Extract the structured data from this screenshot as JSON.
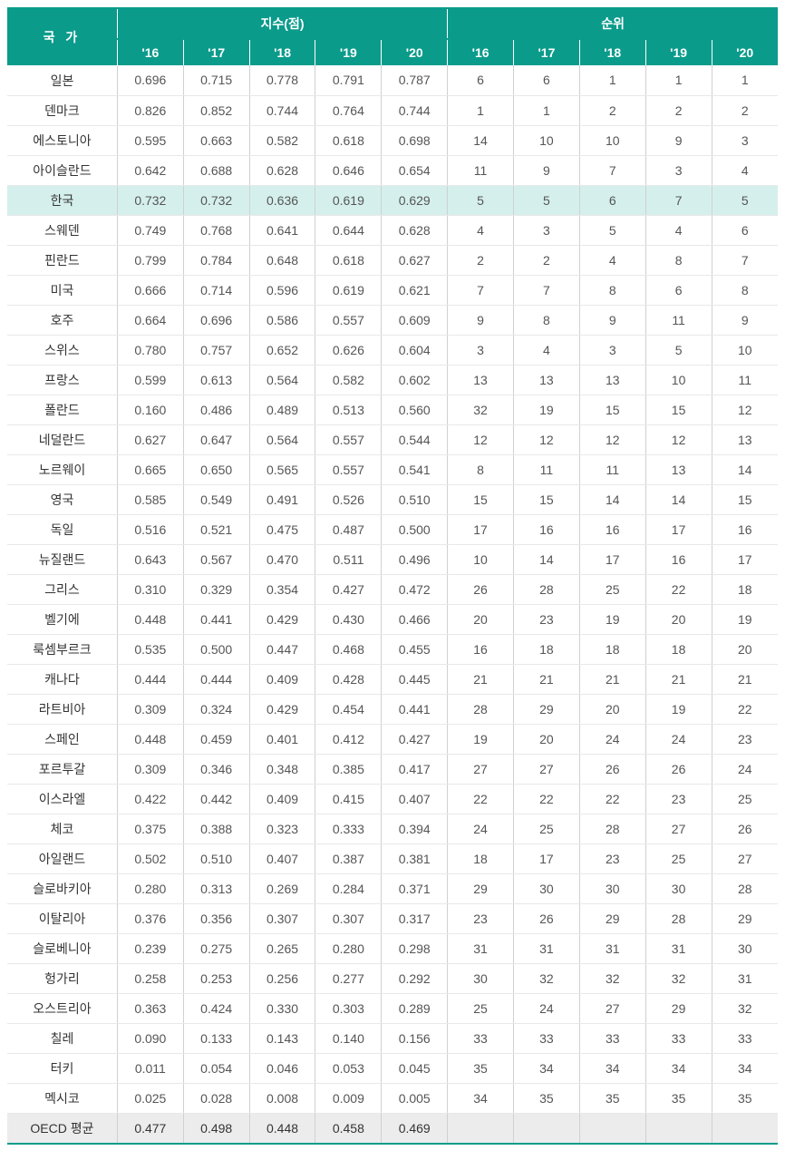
{
  "table": {
    "header": {
      "country_label": "국 가",
      "index_group_label": "지수(점)",
      "rank_group_label": "순위",
      "years": [
        "'16",
        "'17",
        "'18",
        "'19",
        "'20"
      ]
    },
    "colors": {
      "header_bg": "#0a9b8b",
      "header_fg": "#ffffff",
      "highlight_bg": "#d5f0ec",
      "footer_bg": "#ececec",
      "border": "#d0d0d0"
    },
    "rows": [
      {
        "country": "일본",
        "idx": [
          "0.696",
          "0.715",
          "0.778",
          "0.791",
          "0.787"
        ],
        "rank": [
          "6",
          "6",
          "1",
          "1",
          "1"
        ]
      },
      {
        "country": "덴마크",
        "idx": [
          "0.826",
          "0.852",
          "0.744",
          "0.764",
          "0.744"
        ],
        "rank": [
          "1",
          "1",
          "2",
          "2",
          "2"
        ]
      },
      {
        "country": "에스토니아",
        "idx": [
          "0.595",
          "0.663",
          "0.582",
          "0.618",
          "0.698"
        ],
        "rank": [
          "14",
          "10",
          "10",
          "9",
          "3"
        ]
      },
      {
        "country": "아이슬란드",
        "idx": [
          "0.642",
          "0.688",
          "0.628",
          "0.646",
          "0.654"
        ],
        "rank": [
          "11",
          "9",
          "7",
          "3",
          "4"
        ]
      },
      {
        "country": "한국",
        "idx": [
          "0.732",
          "0.732",
          "0.636",
          "0.619",
          "0.629"
        ],
        "rank": [
          "5",
          "5",
          "6",
          "7",
          "5"
        ],
        "highlight": true
      },
      {
        "country": "스웨덴",
        "idx": [
          "0.749",
          "0.768",
          "0.641",
          "0.644",
          "0.628"
        ],
        "rank": [
          "4",
          "3",
          "5",
          "4",
          "6"
        ]
      },
      {
        "country": "핀란드",
        "idx": [
          "0.799",
          "0.784",
          "0.648",
          "0.618",
          "0.627"
        ],
        "rank": [
          "2",
          "2",
          "4",
          "8",
          "7"
        ]
      },
      {
        "country": "미국",
        "idx": [
          "0.666",
          "0.714",
          "0.596",
          "0.619",
          "0.621"
        ],
        "rank": [
          "7",
          "7",
          "8",
          "6",
          "8"
        ]
      },
      {
        "country": "호주",
        "idx": [
          "0.664",
          "0.696",
          "0.586",
          "0.557",
          "0.609"
        ],
        "rank": [
          "9",
          "8",
          "9",
          "11",
          "9"
        ]
      },
      {
        "country": "스위스",
        "idx": [
          "0.780",
          "0.757",
          "0.652",
          "0.626",
          "0.604"
        ],
        "rank": [
          "3",
          "4",
          "3",
          "5",
          "10"
        ]
      },
      {
        "country": "프랑스",
        "idx": [
          "0.599",
          "0.613",
          "0.564",
          "0.582",
          "0.602"
        ],
        "rank": [
          "13",
          "13",
          "13",
          "10",
          "11"
        ]
      },
      {
        "country": "폴란드",
        "idx": [
          "0.160",
          "0.486",
          "0.489",
          "0.513",
          "0.560"
        ],
        "rank": [
          "32",
          "19",
          "15",
          "15",
          "12"
        ]
      },
      {
        "country": "네덜란드",
        "idx": [
          "0.627",
          "0.647",
          "0.564",
          "0.557",
          "0.544"
        ],
        "rank": [
          "12",
          "12",
          "12",
          "12",
          "13"
        ]
      },
      {
        "country": "노르웨이",
        "idx": [
          "0.665",
          "0.650",
          "0.565",
          "0.557",
          "0.541"
        ],
        "rank": [
          "8",
          "11",
          "11",
          "13",
          "14"
        ]
      },
      {
        "country": "영국",
        "idx": [
          "0.585",
          "0.549",
          "0.491",
          "0.526",
          "0.510"
        ],
        "rank": [
          "15",
          "15",
          "14",
          "14",
          "15"
        ]
      },
      {
        "country": "독일",
        "idx": [
          "0.516",
          "0.521",
          "0.475",
          "0.487",
          "0.500"
        ],
        "rank": [
          "17",
          "16",
          "16",
          "17",
          "16"
        ]
      },
      {
        "country": "뉴질랜드",
        "idx": [
          "0.643",
          "0.567",
          "0.470",
          "0.511",
          "0.496"
        ],
        "rank": [
          "10",
          "14",
          "17",
          "16",
          "17"
        ]
      },
      {
        "country": "그리스",
        "idx": [
          "0.310",
          "0.329",
          "0.354",
          "0.427",
          "0.472"
        ],
        "rank": [
          "26",
          "28",
          "25",
          "22",
          "18"
        ]
      },
      {
        "country": "벨기에",
        "idx": [
          "0.448",
          "0.441",
          "0.429",
          "0.430",
          "0.466"
        ],
        "rank": [
          "20",
          "23",
          "19",
          "20",
          "19"
        ]
      },
      {
        "country": "룩셈부르크",
        "idx": [
          "0.535",
          "0.500",
          "0.447",
          "0.468",
          "0.455"
        ],
        "rank": [
          "16",
          "18",
          "18",
          "18",
          "20"
        ]
      },
      {
        "country": "캐나다",
        "idx": [
          "0.444",
          "0.444",
          "0.409",
          "0.428",
          "0.445"
        ],
        "rank": [
          "21",
          "21",
          "21",
          "21",
          "21"
        ]
      },
      {
        "country": "라트비아",
        "idx": [
          "0.309",
          "0.324",
          "0.429",
          "0.454",
          "0.441"
        ],
        "rank": [
          "28",
          "29",
          "20",
          "19",
          "22"
        ]
      },
      {
        "country": "스페인",
        "idx": [
          "0.448",
          "0.459",
          "0.401",
          "0.412",
          "0.427"
        ],
        "rank": [
          "19",
          "20",
          "24",
          "24",
          "23"
        ]
      },
      {
        "country": "포르투갈",
        "idx": [
          "0.309",
          "0.346",
          "0.348",
          "0.385",
          "0.417"
        ],
        "rank": [
          "27",
          "27",
          "26",
          "26",
          "24"
        ]
      },
      {
        "country": "이스라엘",
        "idx": [
          "0.422",
          "0.442",
          "0.409",
          "0.415",
          "0.407"
        ],
        "rank": [
          "22",
          "22",
          "22",
          "23",
          "25"
        ]
      },
      {
        "country": "체코",
        "idx": [
          "0.375",
          "0.388",
          "0.323",
          "0.333",
          "0.394"
        ],
        "rank": [
          "24",
          "25",
          "28",
          "27",
          "26"
        ]
      },
      {
        "country": "아일랜드",
        "idx": [
          "0.502",
          "0.510",
          "0.407",
          "0.387",
          "0.381"
        ],
        "rank": [
          "18",
          "17",
          "23",
          "25",
          "27"
        ]
      },
      {
        "country": "슬로바키아",
        "idx": [
          "0.280",
          "0.313",
          "0.269",
          "0.284",
          "0.371"
        ],
        "rank": [
          "29",
          "30",
          "30",
          "30",
          "28"
        ]
      },
      {
        "country": "이탈리아",
        "idx": [
          "0.376",
          "0.356",
          "0.307",
          "0.307",
          "0.317"
        ],
        "rank": [
          "23",
          "26",
          "29",
          "28",
          "29"
        ]
      },
      {
        "country": "슬로베니아",
        "idx": [
          "0.239",
          "0.275",
          "0.265",
          "0.280",
          "0.298"
        ],
        "rank": [
          "31",
          "31",
          "31",
          "31",
          "30"
        ]
      },
      {
        "country": "헝가리",
        "idx": [
          "0.258",
          "0.253",
          "0.256",
          "0.277",
          "0.292"
        ],
        "rank": [
          "30",
          "32",
          "32",
          "32",
          "31"
        ]
      },
      {
        "country": "오스트리아",
        "idx": [
          "0.363",
          "0.424",
          "0.330",
          "0.303",
          "0.289"
        ],
        "rank": [
          "25",
          "24",
          "27",
          "29",
          "32"
        ]
      },
      {
        "country": "칠레",
        "idx": [
          "0.090",
          "0.133",
          "0.143",
          "0.140",
          "0.156"
        ],
        "rank": [
          "33",
          "33",
          "33",
          "33",
          "33"
        ]
      },
      {
        "country": "터키",
        "idx": [
          "0.011",
          "0.054",
          "0.046",
          "0.053",
          "0.045"
        ],
        "rank": [
          "35",
          "34",
          "34",
          "34",
          "34"
        ]
      },
      {
        "country": "멕시코",
        "idx": [
          "0.025",
          "0.028",
          "0.008",
          "0.009",
          "0.005"
        ],
        "rank": [
          "34",
          "35",
          "35",
          "35",
          "35"
        ]
      },
      {
        "country": "OECD 평균",
        "idx": [
          "0.477",
          "0.498",
          "0.448",
          "0.458",
          "0.469"
        ],
        "rank": [
          "",
          "",
          "",
          "",
          ""
        ],
        "footer": true
      }
    ]
  }
}
